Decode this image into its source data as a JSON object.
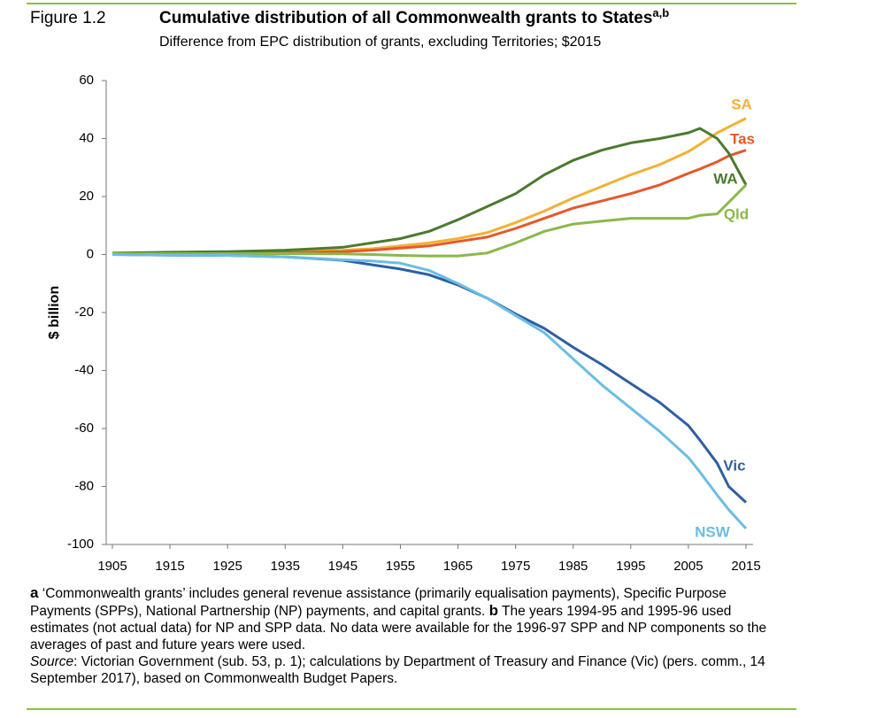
{
  "chart_data": {
    "type": "line",
    "figure_label": "Figure 1.2",
    "title": "Cumulative distribution of all Commonwealth grants to States",
    "title_superscript": "a,b",
    "subtitle": "Difference from EPC distribution of grants, excluding Territories; $2015",
    "y_label": "$ billion",
    "x": [
      1905,
      1915,
      1925,
      1935,
      1945,
      1950,
      1955,
      1960,
      1965,
      1970,
      1975,
      1980,
      1985,
      1990,
      1995,
      2000,
      2005,
      2007,
      2010,
      2012,
      2015
    ],
    "xlim": [
      1905,
      2015
    ],
    "xticks": [
      1905,
      1915,
      1925,
      1935,
      1945,
      1955,
      1965,
      1975,
      1985,
      1995,
      2005,
      2015
    ],
    "ylim": [
      -100,
      60
    ],
    "yticks": [
      -100,
      -80,
      -60,
      -40,
      -20,
      0,
      20,
      40,
      60
    ],
    "series": [
      {
        "name": "SA",
        "color": "#f2b134",
        "values": [
          0,
          0.3,
          0.5,
          0.8,
          1.5,
          2,
          3,
          4,
          5.5,
          7.5,
          11,
          15,
          19.5,
          23.5,
          27.5,
          31,
          35.5,
          38,
          42,
          44,
          47
        ]
      },
      {
        "name": "Tas",
        "color": "#e5582b",
        "values": [
          0,
          0.2,
          0.4,
          0.6,
          1,
          1.5,
          2.2,
          3,
          4.5,
          6,
          9,
          12.5,
          16,
          18.5,
          21,
          24,
          28,
          29.5,
          32,
          34,
          36
        ]
      },
      {
        "name": "WA",
        "color": "#4b7a2e",
        "values": [
          0.5,
          0.8,
          1,
          1.5,
          2.5,
          4,
          5.5,
          8,
          12,
          16.5,
          21,
          27.5,
          32.5,
          36,
          38.5,
          40,
          42,
          43.5,
          40,
          35,
          24
        ]
      },
      {
        "name": "Qld",
        "color": "#8bb84a",
        "values": [
          0.3,
          0.3,
          0.3,
          0.3,
          0.2,
          0,
          -0.3,
          -0.5,
          -0.5,
          0.5,
          4,
          8,
          10.5,
          11.5,
          12.5,
          12.5,
          12.5,
          13.5,
          14,
          18,
          24
        ]
      },
      {
        "name": "Vic",
        "color": "#2e5fa3",
        "values": [
          0,
          -0.2,
          -0.3,
          -0.8,
          -2,
          -3.5,
          -5,
          -7,
          -10.5,
          -15,
          -20.5,
          -25.5,
          -32,
          -38,
          -44.5,
          -51,
          -59,
          -64,
          -72,
          -80,
          -85.5
        ]
      },
      {
        "name": "NSW",
        "color": "#6cbde3",
        "values": [
          0,
          -0.2,
          -0.3,
          -0.8,
          -1.8,
          -2.2,
          -3,
          -5.5,
          -10,
          -15,
          -21,
          -27,
          -36,
          -45,
          -53,
          -61,
          -70,
          -75,
          -83,
          -88,
          -94.5
        ]
      }
    ]
  },
  "notes": {
    "a_marker": "a",
    "a_text": "‘Commonwealth grants’ includes general revenue assistance (primarily equalisation payments), Specific Purpose Payments (SPPs), National Partnership (NP) payments, and capital grants.",
    "b_marker": "b",
    "b_text": "The years 1994-95 and 1995-96 used estimates (not actual data) for NP and SPP data. No data were available for the 1996-97 SPP and NP components so the averages of past and future years were used.",
    "source_label": "Source",
    "source_text": "Victorian Government (sub. 53, p. 1); calculations by Department of Treasury and Finance (Vic) (pers. comm., 14 September 2017), based on Commonwealth Budget Papers."
  }
}
